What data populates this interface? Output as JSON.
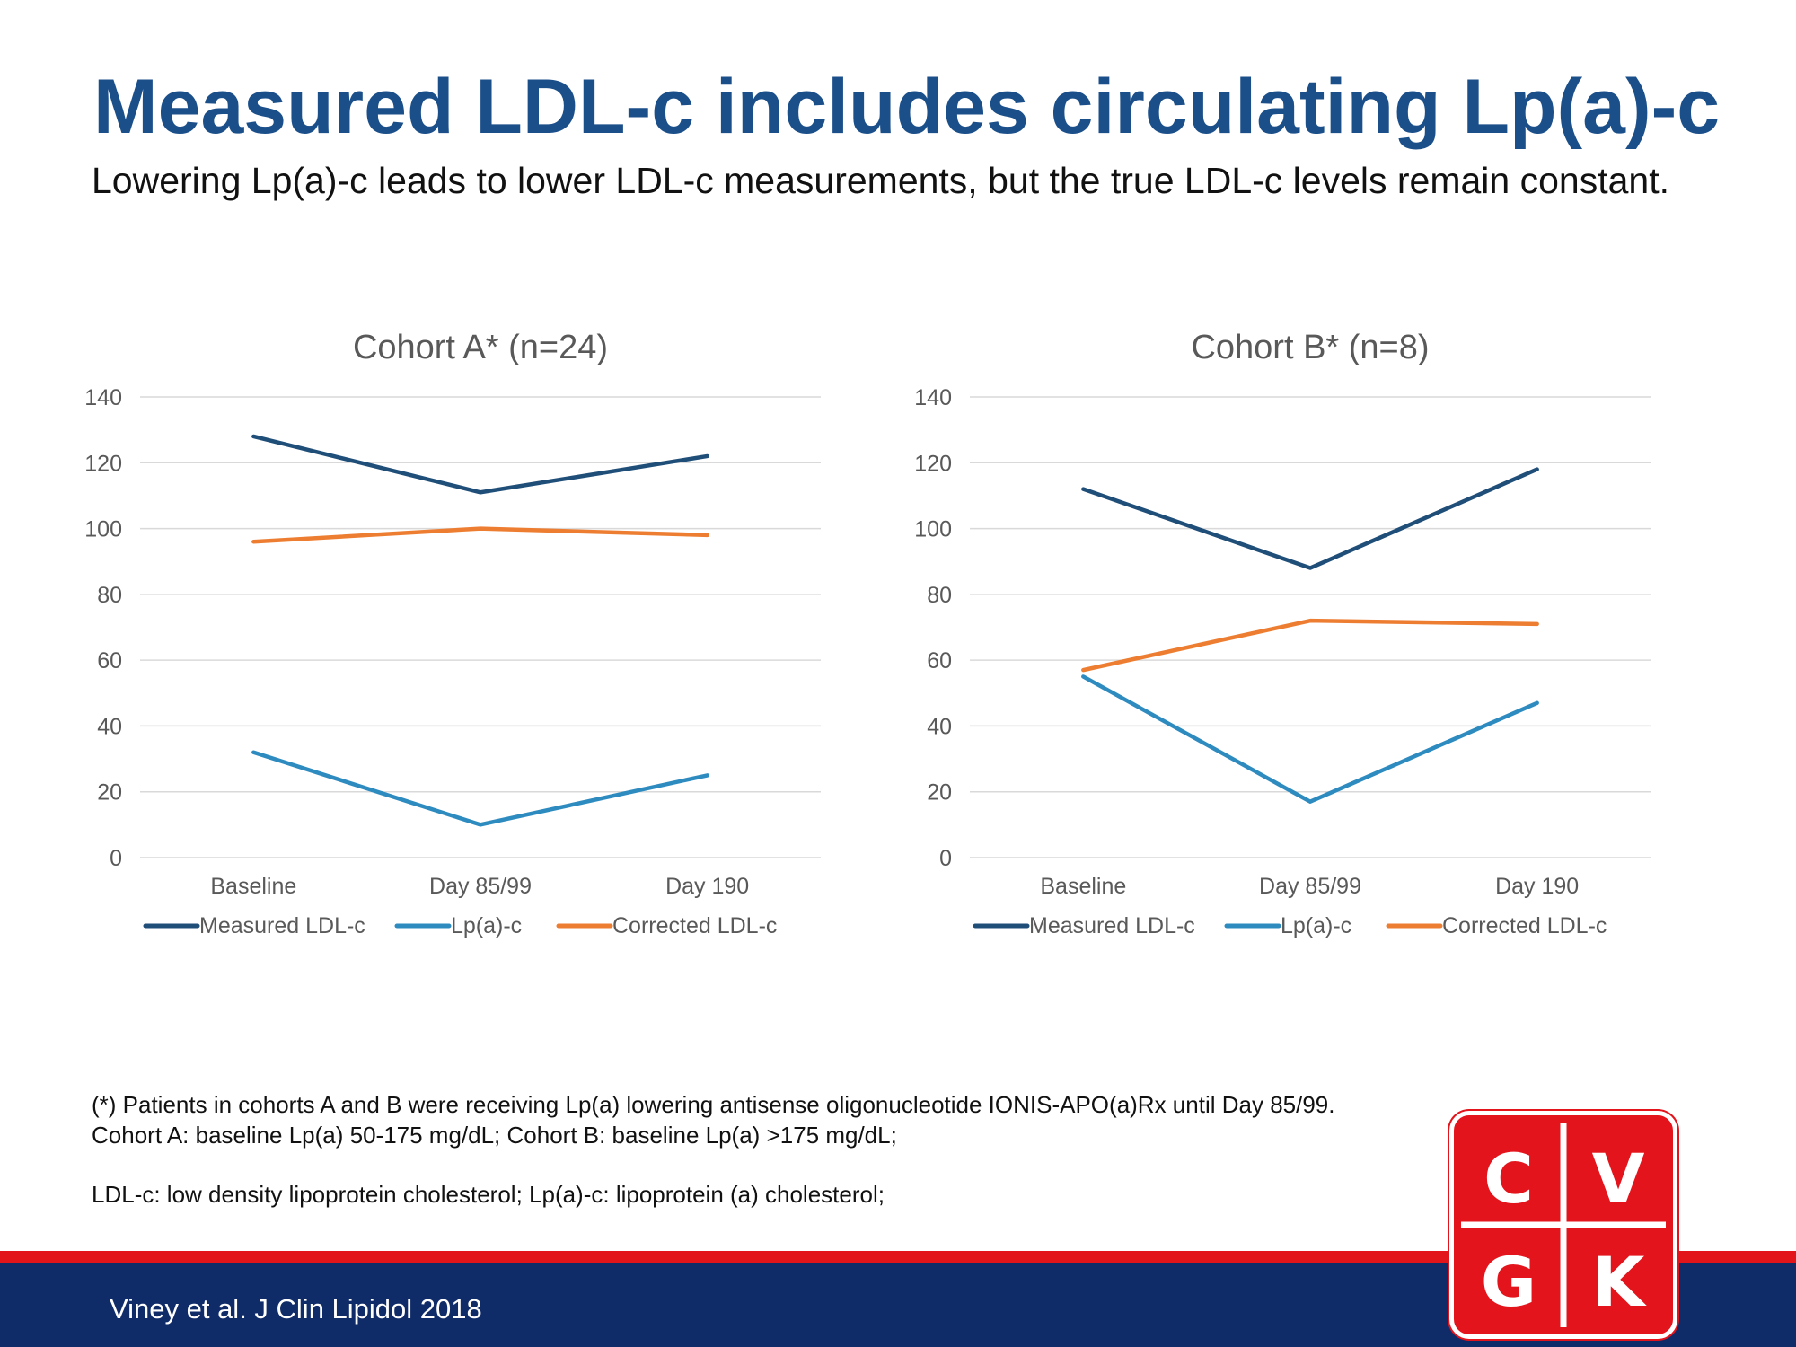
{
  "slide": {
    "title": "Measured LDL-c includes circulating Lp(a)-c",
    "subtitle": "Lowering Lp(a)-c leads to lower LDL-c measurements, but the true LDL-c levels remain constant."
  },
  "colors": {
    "title": "#1b4f8a",
    "measured_ldl": "#1f4e79",
    "lpa": "#2e8bc0",
    "corrected_ldl": "#ed7d31",
    "band_red": "#e2151b",
    "band_blue": "#0f2b68",
    "logo_red": "#e3141b"
  },
  "chart_data": [
    {
      "type": "line",
      "title": "Cohort A* (n=24)",
      "categories": [
        "Baseline",
        "Day 85/99",
        "Day 190"
      ],
      "ylim": [
        0,
        140
      ],
      "yticks": [
        "0",
        "20",
        "40",
        "60",
        "80",
        "100",
        "120",
        "140"
      ],
      "grid": true,
      "legend_position": "bottom",
      "series": [
        {
          "name": "Measured LDL-c",
          "values": [
            128,
            111,
            122
          ],
          "color": "#1f4e79"
        },
        {
          "name": "Lp(a)-c",
          "values": [
            32,
            10,
            25
          ],
          "color": "#2e8bc0"
        },
        {
          "name": "Corrected LDL-c",
          "values": [
            96,
            100,
            98
          ],
          "color": "#ed7d31"
        }
      ]
    },
    {
      "type": "line",
      "title": "Cohort B* (n=8)",
      "categories": [
        "Baseline",
        "Day 85/99",
        "Day 190"
      ],
      "ylim": [
        0,
        140
      ],
      "yticks": [
        "0",
        "20",
        "40",
        "60",
        "80",
        "100",
        "120",
        "140"
      ],
      "grid": true,
      "legend_position": "bottom",
      "series": [
        {
          "name": "Measured LDL-c",
          "values": [
            112,
            88,
            118
          ],
          "color": "#1f4e79"
        },
        {
          "name": "Lp(a)-c",
          "values": [
            55,
            17,
            47
          ],
          "color": "#2e8bc0"
        },
        {
          "name": "Corrected LDL-c",
          "values": [
            57,
            72,
            71
          ],
          "color": "#ed7d31"
        }
      ]
    }
  ],
  "footnotes": {
    "line1": "(*) Patients in cohorts A and B were receiving Lp(a) lowering antisense oligonucleotide IONIS-APO(a)Rx until Day 85/99.",
    "line2": "Cohort A: baseline Lp(a) 50-175 mg/dL; Cohort B: baseline Lp(a) >175 mg/dL;",
    "line3": "LDL-c: low density lipoprotein cholesterol; Lp(a)-c: lipoprotein (a) cholesterol;"
  },
  "citation": "Viney et al. J Clin Lipidol 2018",
  "logo": {
    "letters": [
      "C",
      "V",
      "G",
      "K"
    ]
  }
}
